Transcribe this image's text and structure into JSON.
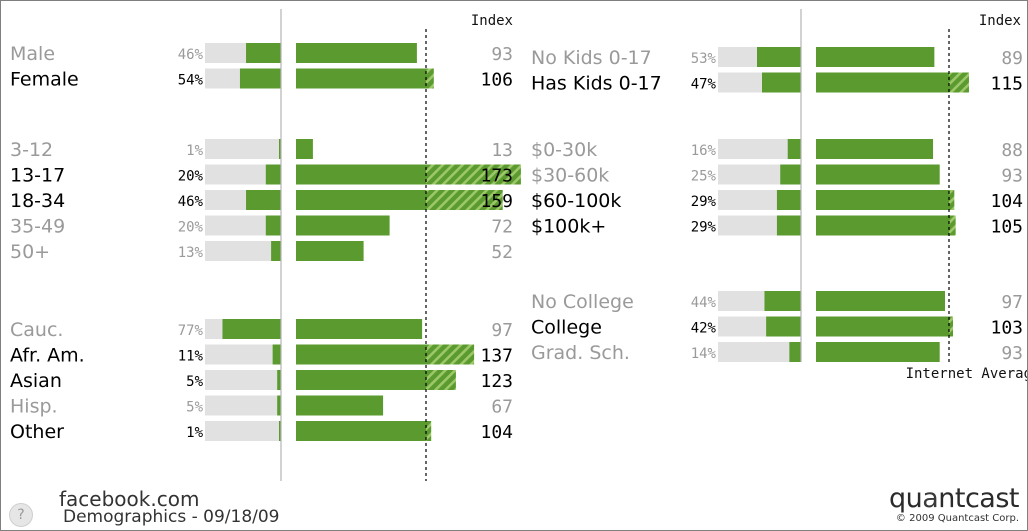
{
  "chart_data": {
    "type": "bar",
    "title": "",
    "index_label": "Index",
    "internet_average_label": "Internet Average",
    "colors": {
      "bar": "#5a9a2e",
      "track": "#e1e1e1",
      "hatch": "#8fc05a",
      "label_dim": "#9a9a9a",
      "label_strong": "#000000"
    },
    "groups": [
      {
        "column": "left",
        "categories": [
          "Male",
          "Female"
        ],
        "percent_labels": [
          "46%",
          "54%"
        ],
        "percent": [
          46,
          54
        ],
        "index": [
          93,
          106
        ],
        "highlight": [
          false,
          true
        ]
      },
      {
        "column": "left",
        "categories": [
          "3-12",
          "13-17",
          "18-34",
          "35-49",
          "50+"
        ],
        "percent_labels": [
          "1%",
          "20%",
          "46%",
          "20%",
          "13%"
        ],
        "percent": [
          1,
          20,
          46,
          20,
          13
        ],
        "index": [
          13,
          173,
          159,
          72,
          52
        ],
        "highlight": [
          false,
          true,
          true,
          false,
          false
        ]
      },
      {
        "column": "left",
        "categories": [
          "Cauc.",
          "Afr. Am.",
          "Asian",
          "Hisp.",
          "Other"
        ],
        "percent_labels": [
          "77%",
          "11%",
          "5%",
          "5%",
          "1%"
        ],
        "percent": [
          77,
          11,
          5,
          5,
          1
        ],
        "index": [
          97,
          137,
          123,
          67,
          104
        ],
        "highlight": [
          false,
          true,
          true,
          false,
          true
        ]
      },
      {
        "column": "right",
        "categories": [
          "No Kids 0-17",
          "Has Kids 0-17"
        ],
        "percent_labels": [
          "53%",
          "47%"
        ],
        "percent": [
          53,
          47
        ],
        "index": [
          89,
          115
        ],
        "highlight": [
          false,
          true
        ]
      },
      {
        "column": "right",
        "categories": [
          "$0-30k",
          "$30-60k",
          "$60-100k",
          "$100k+"
        ],
        "percent_labels": [
          "16%",
          "25%",
          "29%",
          "29%"
        ],
        "percent": [
          16,
          25,
          29,
          29
        ],
        "index": [
          88,
          93,
          104,
          105
        ],
        "highlight": [
          false,
          false,
          true,
          true
        ]
      },
      {
        "column": "right",
        "categories": [
          "No College",
          "College",
          "Grad. Sch."
        ],
        "percent_labels": [
          "44%",
          "42%",
          "14%"
        ],
        "percent": [
          44,
          42,
          14
        ],
        "index": [
          97,
          103,
          93
        ],
        "highlight": [
          false,
          true,
          false
        ]
      }
    ]
  },
  "footer": {
    "site": "facebook.com",
    "subtitle": "Demographics - 09/18/09",
    "help_symbol": "?",
    "brand_pre": "qu",
    "brand_mark": "a",
    "brand_post": "ntcast",
    "copyright": "© 2009 Quantcast Corp."
  }
}
